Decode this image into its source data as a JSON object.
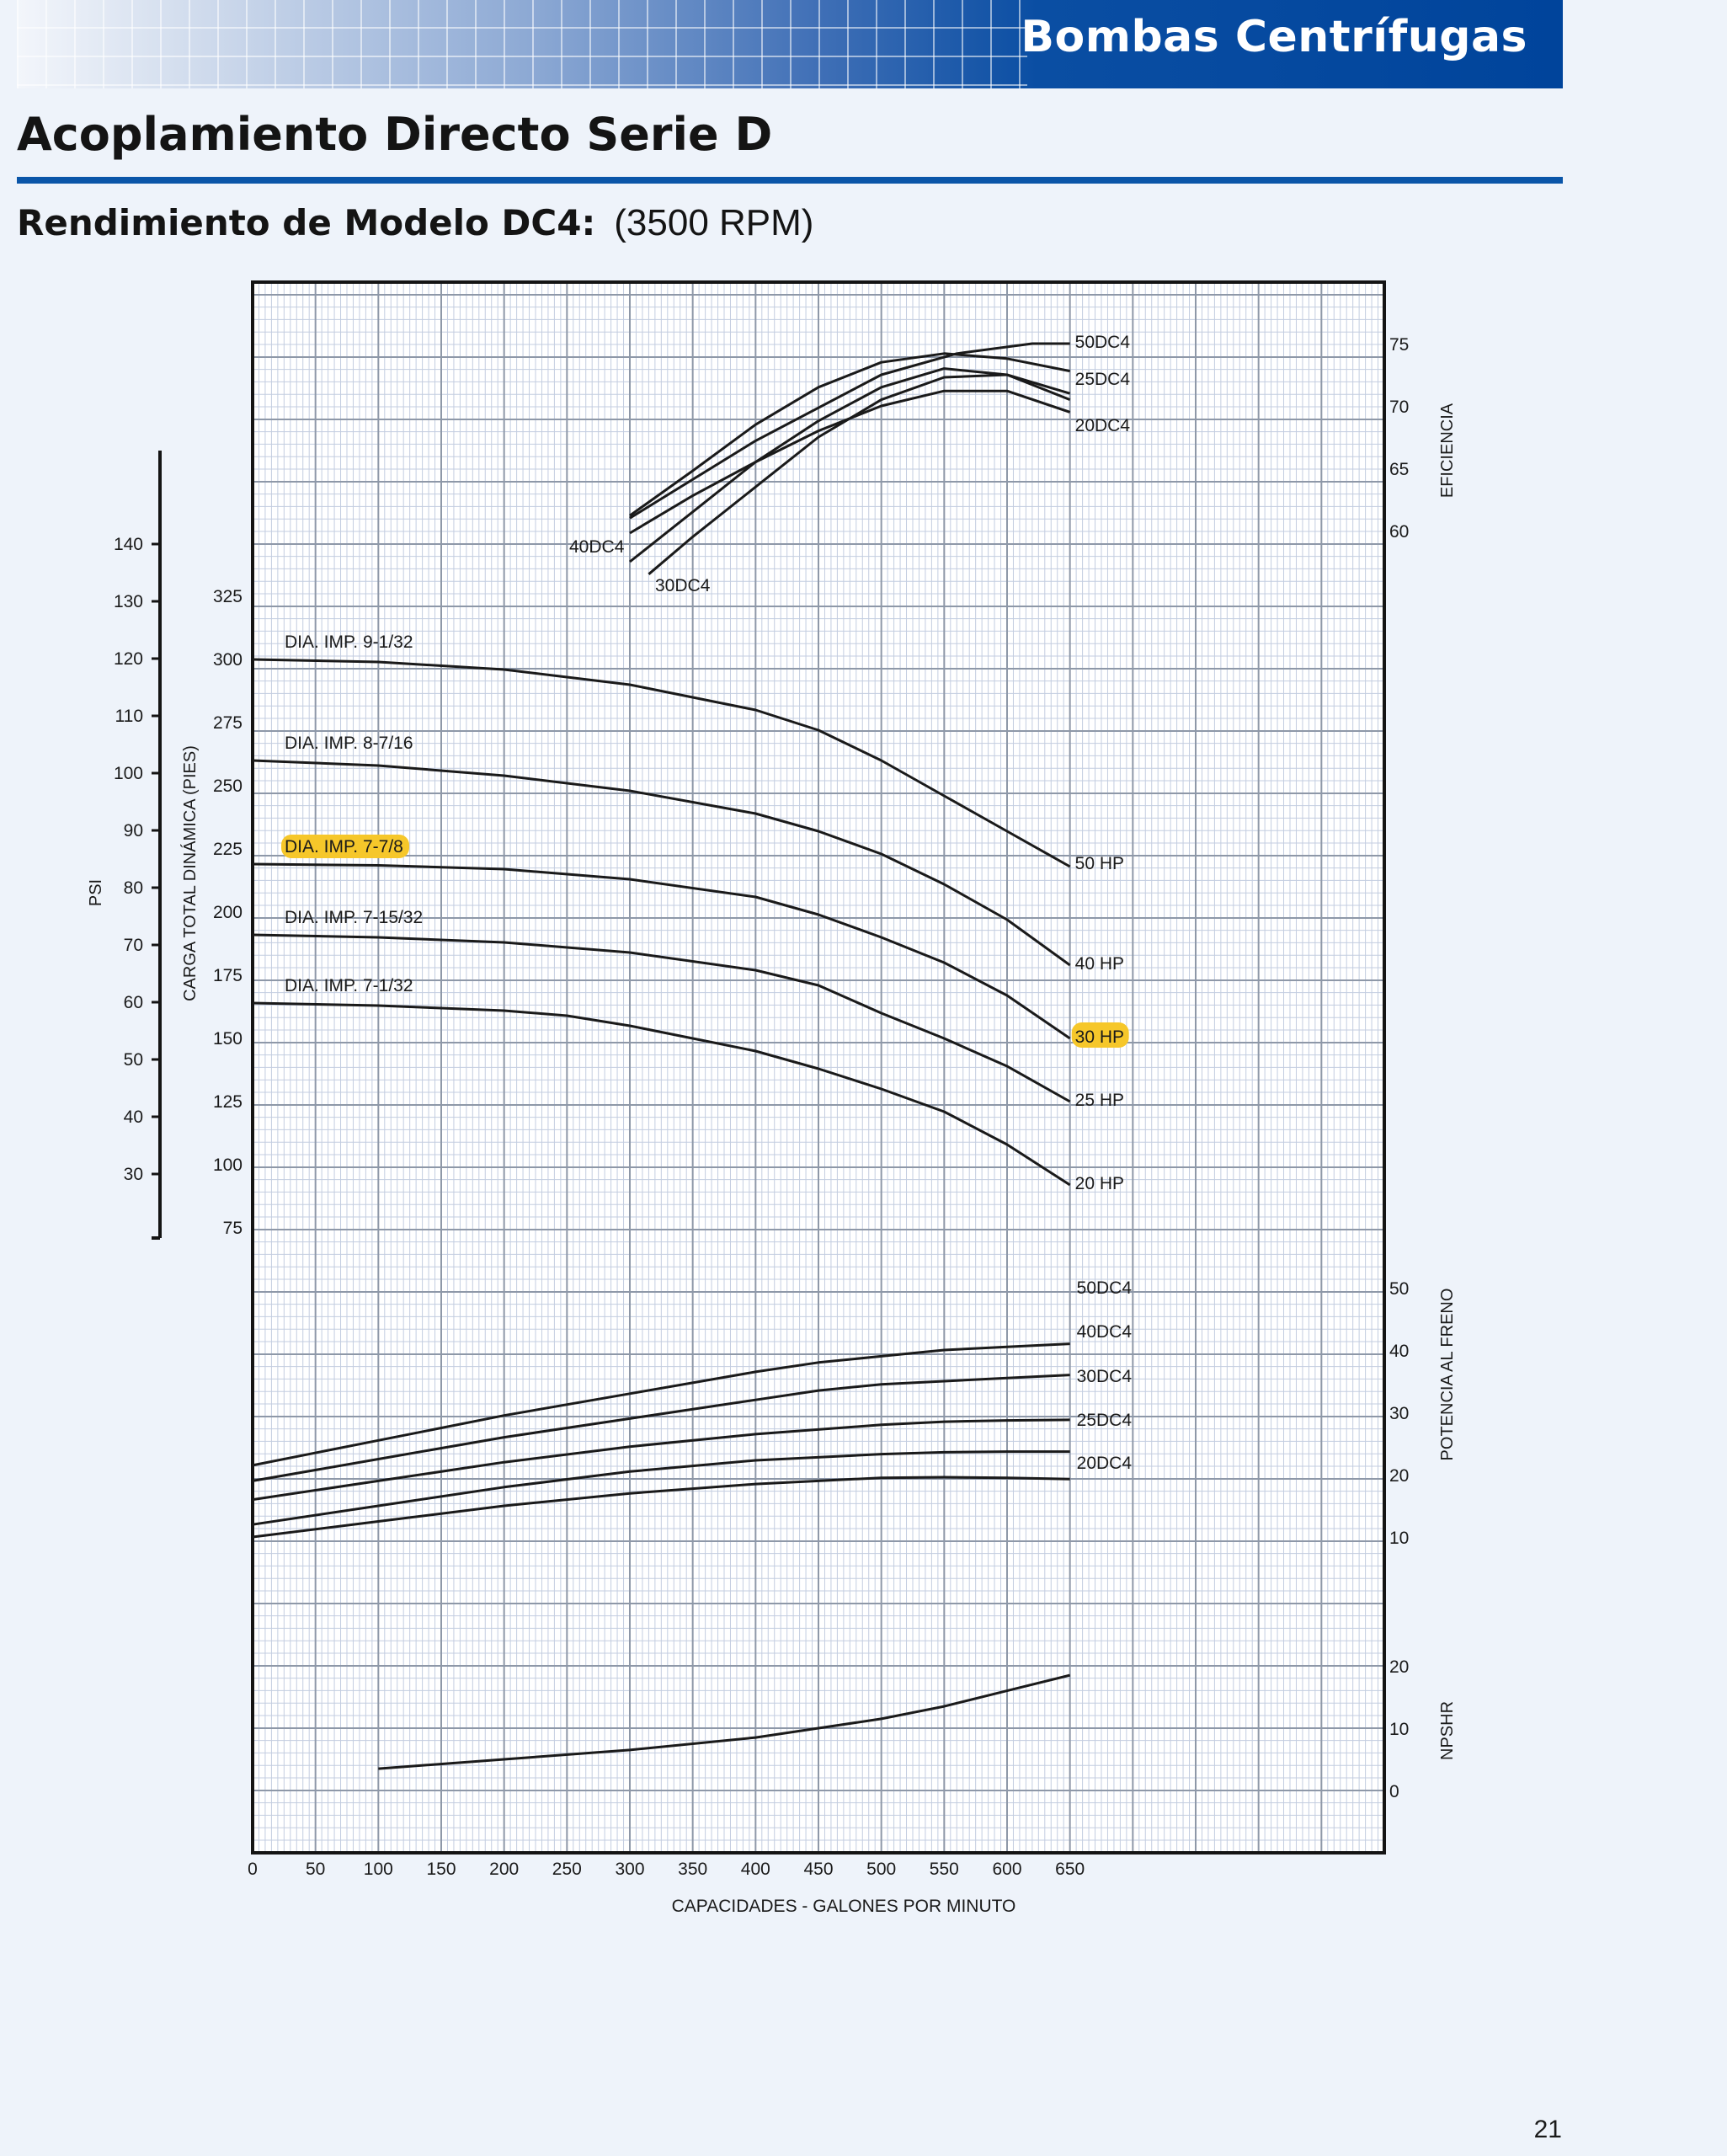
{
  "header": {
    "banner_title": "Bombas Centrífugas",
    "title": "Acoplamiento Directo Serie D",
    "subtitle": "Rendimiento de Modelo DC4:",
    "rpm": "(3500 RPM)"
  },
  "page_number": "21",
  "colors": {
    "banner_blue": "#00449b",
    "rule_blue": "#0a55a8",
    "highlight": "#f6c72a",
    "curve": "#1a1a1a"
  },
  "chart_data": {
    "type": "line",
    "x": {
      "label": "CAPACIDADES - GALONES POR MINUTO",
      "ticks": [
        0,
        50,
        100,
        150,
        200,
        250,
        300,
        350,
        400,
        450,
        500,
        550,
        600,
        650
      ],
      "range": [
        0,
        900
      ]
    },
    "efficiency": {
      "label": "EFICIENCIA",
      "ticks": [
        60,
        65,
        70,
        75
      ],
      "range": [
        55,
        80
      ],
      "series": [
        {
          "name": "50DC4",
          "points": [
            [
              300,
              61
            ],
            [
              400,
              67.2
            ],
            [
              500,
              72.5
            ],
            [
              560,
              74.2
            ],
            [
              620,
              75
            ],
            [
              650,
              75
            ]
          ]
        },
        {
          "name": "25DC4",
          "points": [
            [
              300,
              61.2
            ],
            [
              350,
              64.8
            ],
            [
              400,
              68.5
            ],
            [
              450,
              71.5
            ],
            [
              500,
              73.5
            ],
            [
              550,
              74.2
            ],
            [
              600,
              73.8
            ],
            [
              650,
              72.8
            ]
          ]
        },
        {
          "name": "20DC4",
          "points": [
            [
              300,
              59.8
            ],
            [
              350,
              62.8
            ],
            [
              400,
              65.5
            ],
            [
              450,
              68
            ],
            [
              500,
              70
            ],
            [
              550,
              71.2
            ],
            [
              600,
              71.2
            ],
            [
              650,
              69.5
            ]
          ]
        },
        {
          "name": "",
          "points": [
            [
              300,
              57.5
            ],
            [
              350,
              61.5
            ],
            [
              400,
              65.5
            ],
            [
              450,
              68.8
            ],
            [
              500,
              71.5
            ],
            [
              550,
              73
            ],
            [
              600,
              72.5
            ],
            [
              650,
              70.5
            ]
          ]
        },
        {
          "name": "",
          "points": [
            [
              315,
              56.5
            ],
            [
              350,
              59.5
            ],
            [
              400,
              63.5
            ],
            [
              450,
              67.5
            ],
            [
              500,
              70.5
            ],
            [
              550,
              72.3
            ],
            [
              600,
              72.5
            ],
            [
              650,
              71
            ]
          ]
        }
      ],
      "labels": [
        {
          "text": "40DC4",
          "x": 300,
          "y": 59
        },
        {
          "text": "30DC4",
          "x": 318,
          "y": 56
        }
      ]
    },
    "head": {
      "label": "CARGA TOTAL DINÁMICA (PIES)",
      "ticks": [
        75,
        100,
        125,
        150,
        175,
        200,
        225,
        250,
        275,
        300,
        325
      ],
      "psi": {
        "label": "PSI",
        "ticks": [
          30,
          40,
          50,
          60,
          70,
          80,
          90,
          100,
          110,
          120,
          130,
          140
        ]
      },
      "series": [
        {
          "name": "DIA. IMP. 9-1/32",
          "hp": "50 HP",
          "points": [
            [
              0,
              300
            ],
            [
              100,
              299
            ],
            [
              200,
              296
            ],
            [
              300,
              290
            ],
            [
              400,
              280
            ],
            [
              450,
              272
            ],
            [
              500,
              260
            ],
            [
              550,
              246
            ],
            [
              600,
              232
            ],
            [
              650,
              218
            ]
          ]
        },
        {
          "name": "DIA. IMP. 8-7/16",
          "hp": "40 HP",
          "points": [
            [
              0,
              260
            ],
            [
              100,
              258
            ],
            [
              200,
              254
            ],
            [
              300,
              248
            ],
            [
              400,
              239
            ],
            [
              450,
              232
            ],
            [
              500,
              223
            ],
            [
              550,
              211
            ],
            [
              600,
              197
            ],
            [
              650,
              179
            ]
          ]
        },
        {
          "name": "DIA. IMP. 7-7/8",
          "hp": "30 HP",
          "points": [
            [
              0,
              219
            ],
            [
              100,
              218.5
            ],
            [
              200,
              217
            ],
            [
              300,
              213
            ],
            [
              400,
              206
            ],
            [
              450,
              199
            ],
            [
              500,
              190
            ],
            [
              550,
              180
            ],
            [
              600,
              167
            ],
            [
              650,
              150
            ]
          ]
        },
        {
          "name": "DIA. IMP. 7-15/32",
          "hp": "25 HP",
          "points": [
            [
              0,
              191
            ],
            [
              100,
              190
            ],
            [
              200,
              188
            ],
            [
              300,
              184
            ],
            [
              400,
              177
            ],
            [
              450,
              171
            ],
            [
              500,
              160
            ],
            [
              550,
              150
            ],
            [
              600,
              139
            ],
            [
              650,
              125
            ]
          ]
        },
        {
          "name": "DIA. IMP. 7-1/32",
          "hp": "20 HP",
          "points": [
            [
              0,
              164
            ],
            [
              100,
              163
            ],
            [
              200,
              161
            ],
            [
              250,
              159
            ],
            [
              300,
              155
            ],
            [
              350,
              150
            ],
            [
              400,
              145
            ],
            [
              450,
              138
            ],
            [
              500,
              130
            ],
            [
              550,
              121
            ],
            [
              600,
              108
            ],
            [
              650,
              92
            ]
          ]
        }
      ],
      "highlight_series": "DIA. IMP. 7-7/8"
    },
    "brake_power": {
      "label": "POTENCIA AL FRENO",
      "ticks": [
        10,
        20,
        30,
        40,
        50
      ],
      "series": [
        {
          "name": "50DC4",
          "points": [
            [
              0,
              21.5
            ],
            [
              100,
              25.5
            ],
            [
              200,
              29.5
            ],
            [
              300,
              33
            ],
            [
              400,
              36.5
            ],
            [
              450,
              38
            ],
            [
              500,
              39
            ],
            [
              550,
              40
            ],
            [
              600,
              40.5
            ],
            [
              650,
              41
            ]
          ]
        },
        {
          "name": "40DC4",
          "points": [
            [
              0,
              19
            ],
            [
              100,
              22.5
            ],
            [
              200,
              26
            ],
            [
              300,
              29
            ],
            [
              400,
              32
            ],
            [
              450,
              33.5
            ],
            [
              500,
              34.5
            ],
            [
              550,
              35
            ],
            [
              600,
              35.5
            ],
            [
              650,
              36
            ]
          ]
        },
        {
          "name": "30DC4",
          "points": [
            [
              0,
              16
            ],
            [
              100,
              19
            ],
            [
              200,
              22
            ],
            [
              300,
              24.5
            ],
            [
              400,
              26.5
            ],
            [
              500,
              28
            ],
            [
              550,
              28.5
            ],
            [
              600,
              28.7
            ],
            [
              650,
              28.8
            ]
          ]
        },
        {
          "name": "25DC4",
          "points": [
            [
              0,
              12
            ],
            [
              100,
              15
            ],
            [
              200,
              18
            ],
            [
              300,
              20.5
            ],
            [
              400,
              22.3
            ],
            [
              500,
              23.3
            ],
            [
              550,
              23.6
            ],
            [
              600,
              23.7
            ],
            [
              650,
              23.7
            ]
          ]
        },
        {
          "name": "20DC4",
          "points": [
            [
              0,
              10
            ],
            [
              100,
              12.5
            ],
            [
              200,
              15
            ],
            [
              300,
              17
            ],
            [
              400,
              18.5
            ],
            [
              500,
              19.5
            ],
            [
              550,
              19.6
            ],
            [
              600,
              19.5
            ],
            [
              650,
              19.3
            ]
          ]
        }
      ]
    },
    "npshr": {
      "label": "NPSHR",
      "ticks": [
        0,
        10,
        20
      ],
      "series": [
        {
          "name": "",
          "points": [
            [
              100,
              3.5
            ],
            [
              200,
              5
            ],
            [
              300,
              6.5
            ],
            [
              400,
              8.5
            ],
            [
              450,
              10
            ],
            [
              500,
              11.5
            ],
            [
              550,
              13.5
            ],
            [
              600,
              16
            ],
            [
              650,
              18.5
            ]
          ]
        }
      ]
    }
  }
}
